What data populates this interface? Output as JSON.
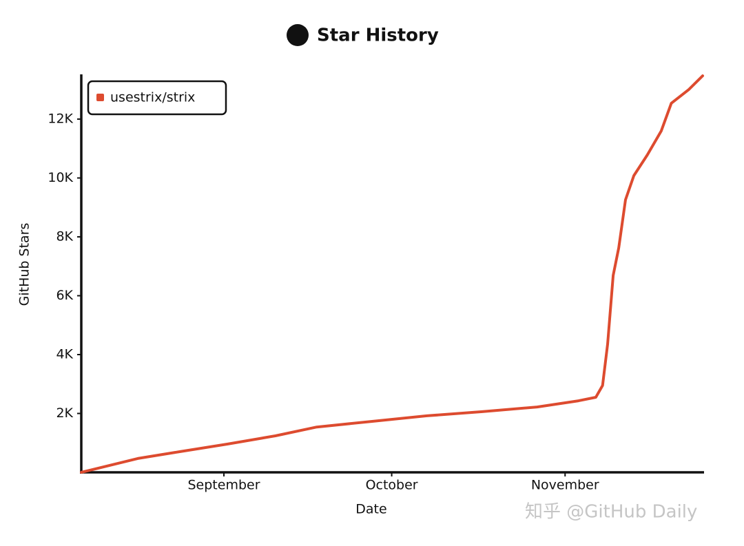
{
  "chart_data": {
    "type": "line",
    "title": "Star History",
    "x_label": "Date",
    "y_label": "GitHub Stars",
    "x": [
      -25.5,
      -15.4,
      -8.0,
      0.6,
      9.2,
      16.6,
      26.5,
      36.3,
      46.2,
      56.0,
      63.4,
      66.5,
      67.7,
      68.6,
      69.6,
      70.6,
      71.8,
      73.3,
      75.7,
      78.2,
      80.0,
      83.1,
      85.6
    ],
    "series": [
      {
        "name": "usestrix/strix",
        "color": "#dd4b2f",
        "values": [
          0,
          470,
          700,
          960,
          1240,
          1540,
          1730,
          1920,
          2060,
          2220,
          2430,
          2550,
          2950,
          4350,
          6690,
          7630,
          9260,
          10080,
          10780,
          11600,
          12540,
          13000,
          13470
        ]
      }
    ],
    "xlim": [
      -25.5,
      85.6
    ],
    "xticks": [
      {
        "value": 0,
        "label": "September"
      },
      {
        "value": 30,
        "label": "October"
      },
      {
        "value": 61,
        "label": "November"
      }
    ],
    "ylim": [
      0,
      13520
    ],
    "yticks": [
      {
        "value": 2000,
        "label": "2K"
      },
      {
        "value": 4000,
        "label": "4K"
      },
      {
        "value": 6000,
        "label": "6K"
      },
      {
        "value": 8000,
        "label": "8K"
      },
      {
        "value": 10000,
        "label": "10K"
      },
      {
        "value": 12000,
        "label": "12K"
      }
    ],
    "legend": "top-left",
    "watermark": "知乎 @GitHub Daily"
  }
}
